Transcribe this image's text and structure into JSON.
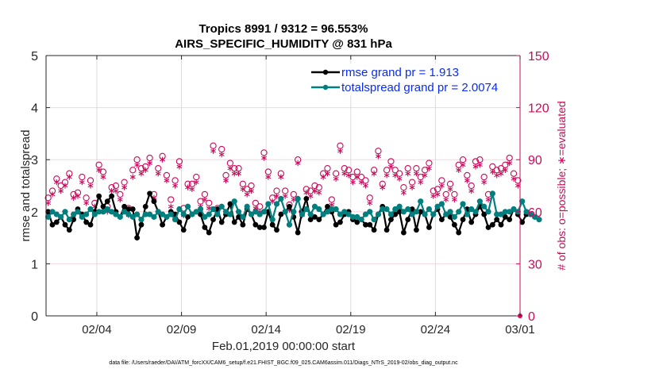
{
  "chart_data": {
    "type": "line",
    "title": "Tropics 8991 / 9312 = 96.553%",
    "subtitle": "AIRS_SPECIFIC_HUMIDITY @ 831 hPa",
    "xlabel": "Feb.01,2019 00:00:00 start",
    "ylabel": "rmse and totalspread",
    "ylabel_right": "# of obs: o=possible; ∗=evaluated",
    "footnote": "data file: /Users/raeder/DAI/ATM_forcXX/CAM6_setup/f.e21.FHIST_BGC.f09_025.CAM6assim.011/Diags_NTrS_2019-02/obs_diag_output.nc",
    "x_unit": "days since Feb.01,2019 00:00:00",
    "xlim": [
      0,
      28
    ],
    "ylim": [
      0,
      5
    ],
    "ylim_right": [
      0,
      150
    ],
    "x_ticks": [
      {
        "value": 3,
        "label": "02/04"
      },
      {
        "value": 8,
        "label": "02/09"
      },
      {
        "value": 13,
        "label": "02/14"
      },
      {
        "value": 18,
        "label": "02/19"
      },
      {
        "value": 23,
        "label": "02/24"
      },
      {
        "value": 28,
        "label": "03/01"
      }
    ],
    "y_ticks": [
      0,
      1,
      2,
      3,
      4,
      5
    ],
    "y_ticks_right": [
      0,
      30,
      60,
      90,
      120,
      150
    ],
    "grid": "on",
    "legend_position": "top-right",
    "colors": {
      "rmse": "#000000",
      "totalspread": "#007f7f",
      "obs_count": "#cc0a5a",
      "legend_text": "#0a2bf5",
      "h_grid": "#f5d5e0",
      "v_grid": "#dcdcdc"
    },
    "series": [
      {
        "name": "rmse grand pr = 1.913",
        "key": "rmse",
        "x_step_days": 0.25,
        "x_start": 0.125,
        "values": [
          2.0,
          1.75,
          1.8,
          1.9,
          1.75,
          1.65,
          1.85,
          2.05,
          1.95,
          1.8,
          1.75,
          2.0,
          2.3,
          2.1,
          2.2,
          2.3,
          2.0,
          1.9,
          2.1,
          2.05,
          2.05,
          1.5,
          1.75,
          2.1,
          2.35,
          2.2,
          2.0,
          1.75,
          1.9,
          2.0,
          1.95,
          1.8,
          1.65,
          1.9,
          1.95,
          2.0,
          1.95,
          1.7,
          1.6,
          1.85,
          2.05,
          1.8,
          1.95,
          2.15,
          1.8,
          1.9,
          1.75,
          2.05,
          1.95,
          1.75,
          1.7,
          1.7,
          2.0,
          1.75,
          1.65,
          1.95,
          2.0,
          2.1,
          1.9,
          1.6,
          2.0,
          2.25,
          1.85,
          1.9,
          1.85,
          1.95,
          2.1,
          2.0,
          1.75,
          1.8,
          1.95,
          2.0,
          1.85,
          1.8,
          1.85,
          1.75,
          1.75,
          1.65,
          1.95,
          2.1,
          1.65,
          1.85,
          1.95,
          2.0,
          1.6,
          1.85,
          2.05,
          1.65,
          2.0,
          1.95,
          1.7,
          1.95,
          2.05,
          1.85,
          1.95,
          1.9,
          1.75,
          1.6,
          1.85,
          2.05,
          1.8,
          1.95,
          2.1,
          1.95,
          1.7,
          1.75,
          1.85,
          1.75,
          1.9,
          1.85,
          2.05,
          1.95,
          1.8,
          1.95
        ]
      },
      {
        "name": "totalspread grand pr = 2.0074",
        "key": "totalspread",
        "x_step_days": 0.25,
        "x_start": 0.125,
        "values": [
          1.9,
          2.0,
          1.95,
          1.9,
          2.0,
          1.85,
          1.95,
          2.0,
          1.9,
          1.95,
          2.05,
          1.95,
          2.0,
          2.0,
          2.05,
          2.0,
          1.95,
          1.9,
          2.0,
          1.95,
          1.9,
          1.95,
          1.85,
          1.95,
          1.95,
          1.9,
          2.0,
          1.95,
          1.9,
          1.95,
          1.85,
          2.05,
          1.95,
          2.1,
          1.95,
          2.0,
          2.05,
          1.9,
          1.95,
          2.05,
          1.95,
          2.1,
          2.0,
          1.95,
          2.2,
          2.0,
          1.9,
          2.1,
          1.95,
          2.0,
          1.95,
          2.0,
          2.15,
          1.85,
          2.15,
          2.25,
          2.0,
          1.75,
          2.0,
          2.25,
          1.95,
          2.05,
          1.95,
          2.1,
          2.05,
          1.95,
          2.0,
          2.05,
          2.05,
          1.95,
          2.0,
          1.95,
          1.9,
          1.9,
          1.85,
          1.95,
          2.0,
          1.85,
          1.95,
          2.05,
          2.05,
          1.95,
          2.05,
          2.1,
          2.0,
          2.05,
          1.95,
          2.0,
          2.2,
          1.95,
          2.05,
          1.95,
          2.1,
          2.15,
          1.95,
          2.0,
          1.9,
          2.0,
          2.15,
          1.95,
          2.05,
          2.0,
          2.2,
          2.1,
          2.0,
          2.35,
          1.95,
          1.95,
          2.0,
          2.0,
          2.05,
          2.0,
          2.2,
          2.0,
          1.95,
          1.9,
          1.85
        ]
      },
      {
        "name": "# of obs possible",
        "key": "possible",
        "axis": "right",
        "marker": "circle",
        "x_step_days": 0.25,
        "x_start": 0.125,
        "values": [
          68,
          72,
          79,
          75,
          77,
          82,
          70,
          71,
          80,
          68,
          78,
          65,
          87,
          83,
          63,
          74,
          75,
          70,
          77,
          62,
          84,
          90,
          85,
          86,
          91,
          70,
          85,
          92,
          81,
          67,
          78,
          89,
          62,
          76,
          76,
          80,
          66,
          70,
          65,
          98,
          62,
          96,
          81,
          88,
          85,
          85,
          76,
          73,
          75,
          65,
          63,
          94,
          83,
          68,
          72,
          82,
          72,
          64,
          70,
          90,
          60,
          73,
          72,
          75,
          74,
          82,
          85,
          67,
          82,
          98,
          85,
          84,
          80,
          83,
          80,
          78,
          68,
          84,
          95,
          76,
          84,
          89,
          84,
          82,
          74,
          85,
          77,
          85,
          80,
          84,
          88,
          72,
          73,
          78,
          70,
          76,
          70,
          87,
          90,
          81,
          75,
          89,
          90,
          80,
          70,
          86,
          84,
          85,
          87,
          91,
          82,
          78,
          86
        ]
      },
      {
        "name": "# of obs evaluated",
        "key": "evaluated",
        "axis": "right",
        "marker": "asterisk",
        "x_step_days": 0.25,
        "x_start": 0.125,
        "values": [
          65,
          70,
          77,
          72,
          75,
          80,
          68,
          69,
          77,
          65,
          75,
          63,
          84,
          80,
          60,
          72,
          72,
          67,
          74,
          58,
          80,
          87,
          82,
          84,
          88,
          68,
          82,
          90,
          78,
          63,
          75,
          86,
          58,
          74,
          73,
          77,
          63,
          67,
          62,
          95,
          59,
          93,
          78,
          85,
          82,
          82,
          73,
          70,
          72,
          62,
          60,
          91,
          80,
          66,
          69,
          80,
          69,
          61,
          67,
          88,
          58,
          71,
          69,
          72,
          71,
          80,
          82,
          64,
          79,
          95,
          82,
          81,
          77,
          80,
          77,
          75,
          65,
          82,
          92,
          74,
          81,
          86,
          81,
          79,
          71,
          82,
          74,
          82,
          77,
          81,
          85,
          69,
          70,
          75,
          67,
          73,
          67,
          84,
          87,
          78,
          72,
          86,
          87,
          77,
          67,
          83,
          81,
          82,
          84,
          88,
          79,
          75,
          83
        ]
      }
    ],
    "legend": [
      {
        "label": "rmse grand pr = 1.913",
        "key": "rmse"
      },
      {
        "label": "totalspread grand pr = 2.0074",
        "key": "totalspread"
      }
    ]
  }
}
